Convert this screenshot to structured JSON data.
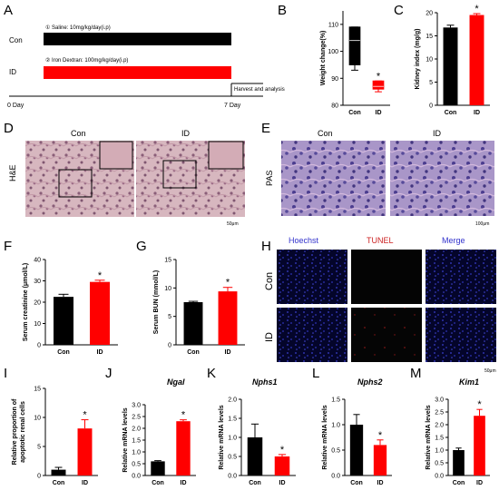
{
  "panels": {
    "A": {
      "letter": "A",
      "con_label": "Con",
      "id_label": "ID",
      "con_treatment": "① Saline: 10mg/kg/day(i.p)",
      "id_treatment": "② Iron Dextran: 100mg/kg/day(i.p)",
      "harvest_label": "Harvest and analysis",
      "day0_label": "0 Day",
      "day7_label": "7 Day",
      "colors": {
        "con": "#000000",
        "id": "#ff0000"
      }
    },
    "D": {
      "letter": "D",
      "stain": "H&E",
      "con_label": "Con",
      "id_label": "ID",
      "scale": "50μm"
    },
    "E": {
      "letter": "E",
      "stain": "PAS",
      "con_label": "Con",
      "id_label": "ID",
      "scale": "100μm"
    },
    "H": {
      "letter": "H",
      "col_hoechst": "Hoechst",
      "col_tunel": "TUNEL",
      "col_merge": "Merge",
      "row_con": "Con",
      "row_id": "ID",
      "scale": "50μm",
      "colors": {
        "hoechst": "#3333cc",
        "tunel": "#cc2222",
        "merge": "#3333cc"
      }
    }
  },
  "chart_data": [
    {
      "panel": "B",
      "type": "box",
      "ylabel": "Weight change(%)",
      "categories": [
        "Con",
        "ID"
      ],
      "boxes": [
        {
          "min": 93,
          "q1": 95,
          "median": 104,
          "q3": 109,
          "max": 109
        },
        {
          "min": 85,
          "q1": 86,
          "median": 87,
          "q3": 89,
          "max": 89
        }
      ],
      "ylim": [
        80,
        115
      ],
      "yticks": [
        "80",
        "90",
        "100",
        "110"
      ],
      "sig": [
        "",
        "*"
      ]
    },
    {
      "panel": "C",
      "type": "bar",
      "ylabel": "Kidney index (mg/g)",
      "categories": [
        "Con",
        "ID"
      ],
      "values": [
        16.8,
        19.5
      ],
      "errors": [
        0.5,
        0.3
      ],
      "ylim": [
        0,
        20
      ],
      "yticks": [
        "0",
        "5",
        "10",
        "15",
        "20"
      ],
      "sig": [
        "",
        "*"
      ]
    },
    {
      "panel": "F",
      "type": "bar",
      "ylabel": "Serum creatinine (μmol/L)",
      "categories": [
        "Con",
        "ID"
      ],
      "values": [
        22.5,
        29.5
      ],
      "errors": [
        1.2,
        0.8
      ],
      "ylim": [
        0,
        40
      ],
      "yticks": [
        "0",
        "10",
        "20",
        "30",
        "40"
      ],
      "sig": [
        "",
        "*"
      ]
    },
    {
      "panel": "G",
      "type": "bar",
      "ylabel": "Serum BUN (mmol/L)",
      "categories": [
        "Con",
        "ID"
      ],
      "values": [
        7.5,
        9.4
      ],
      "errors": [
        0.15,
        0.7
      ],
      "ylim": [
        0,
        15
      ],
      "yticks": [
        "0",
        "5",
        "10",
        "15"
      ],
      "sig": [
        "",
        "*"
      ]
    },
    {
      "panel": "I",
      "type": "bar",
      "ylabel": "Relative proportion of apoptotic renal cells",
      "categories": [
        "Con",
        "ID"
      ],
      "values": [
        1.0,
        8.1
      ],
      "errors": [
        0.4,
        1.5
      ],
      "ylim": [
        0,
        15
      ],
      "yticks": [
        "0",
        "5",
        "10",
        "15"
      ],
      "sig": [
        "",
        "*"
      ]
    },
    {
      "panel": "J",
      "type": "bar",
      "title": "Ngal",
      "ylabel": "Relative mRNA levels",
      "categories": [
        "Con",
        "ID"
      ],
      "values": [
        0.6,
        2.3
      ],
      "errors": [
        0.03,
        0.06
      ],
      "ylim": [
        0,
        3.0
      ],
      "yticks": [
        "0.0",
        "0.5",
        "1.0",
        "1.5",
        "2.0",
        "2.5",
        "3.0"
      ],
      "sig": [
        "",
        "*"
      ]
    },
    {
      "panel": "K",
      "type": "bar",
      "title": "Nphs1",
      "ylabel": "Relative mRNA levels",
      "categories": [
        "Con",
        "ID"
      ],
      "values": [
        1.0,
        0.5
      ],
      "errors": [
        0.35,
        0.05
      ],
      "ylim": [
        0,
        2.0
      ],
      "yticks": [
        "0.0",
        "0.5",
        "1.0",
        "1.5",
        "2.0"
      ],
      "sig": [
        "",
        "*"
      ]
    },
    {
      "panel": "L",
      "type": "bar",
      "title": "Nphs2",
      "ylabel": "Relative mRNA levels",
      "categories": [
        "Con",
        "ID"
      ],
      "values": [
        1.0,
        0.6
      ],
      "errors": [
        0.2,
        0.1
      ],
      "ylim": [
        0,
        1.5
      ],
      "yticks": [
        "0.0",
        "0.5",
        "1.0",
        "1.5"
      ],
      "sig": [
        "",
        "*"
      ]
    },
    {
      "panel": "M",
      "type": "bar",
      "title": "Kim1",
      "ylabel": "Relative mRNA levels",
      "categories": [
        "Con",
        "ID"
      ],
      "values": [
        1.0,
        2.35
      ],
      "errors": [
        0.08,
        0.25
      ],
      "ylim": [
        0,
        3.0
      ],
      "yticks": [
        "0.0",
        "0.5",
        "1.0",
        "1.5",
        "2.0",
        "2.5",
        "3.0"
      ],
      "sig": [
        "",
        "*"
      ]
    }
  ],
  "colors": {
    "con_bar": "#000000",
    "id_bar": "#ff0000"
  }
}
